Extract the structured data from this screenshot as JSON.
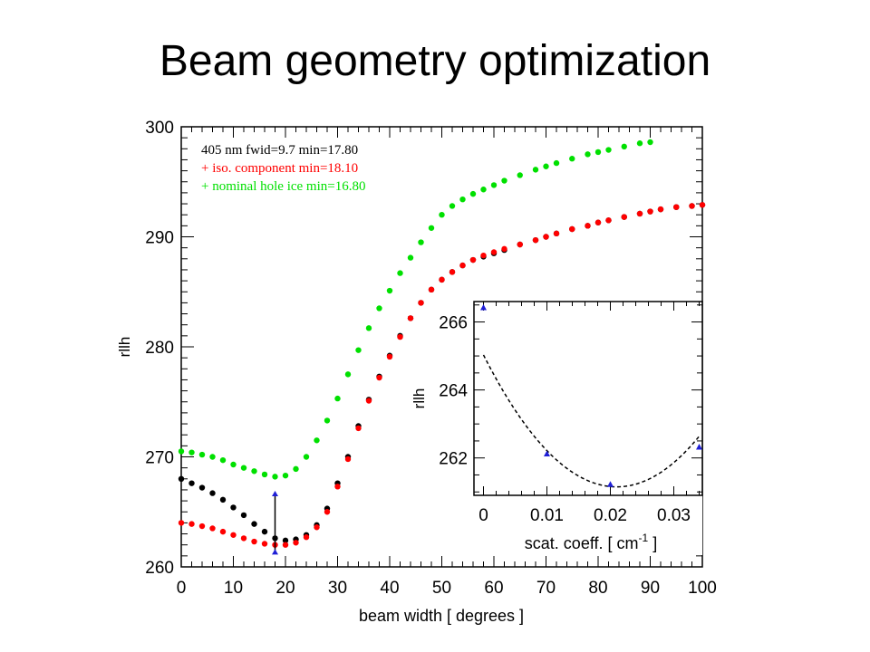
{
  "slide": {
    "title": "Beam geometry optimization"
  },
  "colors": {
    "black": "#000000",
    "red": "#ff0000",
    "green": "#00e000",
    "blue": "#1f1fd6"
  },
  "chart_data": [
    {
      "type": "scatter",
      "title": "",
      "xlabel": "beam width [ degrees ]",
      "ylabel": "rllh",
      "xlim": [
        0,
        100
      ],
      "ylim": [
        260,
        300
      ],
      "xticks": [
        0,
        10,
        20,
        30,
        40,
        50,
        60,
        70,
        80,
        90,
        100
      ],
      "yticks": [
        260,
        270,
        280,
        290,
        300
      ],
      "legend_placement": "top-left",
      "legend": [
        {
          "text": "405 nm fwid=9.7   min=17.80",
          "color": "#000000"
        },
        {
          "text": "+ iso. component  min=18.10",
          "color": "#ff0000"
        },
        {
          "text": "+ nominal hole ice  min=16.80",
          "color": "#00e000"
        }
      ],
      "series": [
        {
          "color": "#000000",
          "x": [
            0,
            2,
            4,
            6,
            8,
            10,
            12,
            14,
            16,
            18,
            20,
            22,
            24,
            26,
            28,
            30,
            32,
            34,
            36,
            38,
            40,
            42,
            44,
            46,
            48,
            50,
            52,
            54,
            56,
            58,
            60,
            62,
            65,
            68,
            70,
            72,
            75,
            78,
            80,
            82,
            85,
            88,
            90,
            92,
            95,
            98,
            100
          ],
          "y": [
            268.0,
            267.6,
            267.2,
            266.7,
            266.1,
            265.4,
            264.7,
            263.9,
            263.2,
            262.6,
            262.4,
            262.5,
            262.9,
            263.8,
            265.3,
            267.6,
            270.0,
            272.8,
            275.2,
            277.3,
            279.2,
            281.0,
            282.6,
            284.0,
            285.2,
            286.1,
            286.8,
            287.4,
            287.9,
            288.2,
            288.5,
            288.8,
            289.3,
            289.7,
            290.0,
            290.3,
            290.7,
            291.0,
            291.3,
            291.5,
            291.8,
            292.1,
            292.3,
            292.5,
            292.7,
            292.8,
            292.9
          ]
        },
        {
          "color": "#ff0000",
          "x": [
            0,
            2,
            4,
            6,
            8,
            10,
            12,
            14,
            16,
            18,
            20,
            22,
            24,
            26,
            28,
            30,
            32,
            34,
            36,
            38,
            40,
            42,
            44,
            46,
            48,
            50,
            52,
            54,
            56,
            58,
            60,
            62,
            65,
            68,
            70,
            72,
            75,
            78,
            80,
            82,
            85,
            88,
            90,
            92,
            95,
            98,
            100
          ],
          "y": [
            264.0,
            263.9,
            263.7,
            263.5,
            263.2,
            262.9,
            262.6,
            262.3,
            262.1,
            262.0,
            262.0,
            262.2,
            262.7,
            263.6,
            265.0,
            267.3,
            269.8,
            272.6,
            275.1,
            277.2,
            279.1,
            280.9,
            282.6,
            284.0,
            285.2,
            286.1,
            286.8,
            287.4,
            287.9,
            288.3,
            288.6,
            288.9,
            289.3,
            289.7,
            290.0,
            290.3,
            290.7,
            291.0,
            291.3,
            291.5,
            291.8,
            292.1,
            292.3,
            292.5,
            292.7,
            292.8,
            292.9
          ]
        },
        {
          "color": "#00e000",
          "x": [
            0,
            2,
            4,
            6,
            8,
            10,
            12,
            14,
            16,
            18,
            20,
            22,
            24,
            26,
            28,
            30,
            32,
            34,
            36,
            38,
            40,
            42,
            44,
            46,
            48,
            50,
            52,
            54,
            56,
            58,
            60,
            62,
            65,
            68,
            70,
            72,
            75,
            78,
            80,
            82,
            85,
            88,
            90
          ],
          "y": [
            270.5,
            270.4,
            270.2,
            270.0,
            269.7,
            269.3,
            269.0,
            268.7,
            268.4,
            268.2,
            268.3,
            268.9,
            270.0,
            271.5,
            273.3,
            275.3,
            277.5,
            279.7,
            281.7,
            283.5,
            285.1,
            286.7,
            288.1,
            289.5,
            290.8,
            292.0,
            292.8,
            293.4,
            293.9,
            294.3,
            294.7,
            295.1,
            295.6,
            296.1,
            296.4,
            296.7,
            297.1,
            297.5,
            297.7,
            297.9,
            298.2,
            298.5,
            298.6
          ]
        }
      ],
      "annotation": {
        "x": 18,
        "y_top": 266.5,
        "y_bottom": 261.2,
        "color": "#1f1fd6"
      }
    },
    {
      "type": "line",
      "title": "",
      "xlabel": "scat. coeff. [ cm-1 ]",
      "xlabel_parts": {
        "text": "scat. coeff. [ cm",
        "sup": "-1",
        "end": " ]"
      },
      "ylabel": "rllh",
      "xlim": [
        -0.0015,
        0.0345
      ],
      "ylim": [
        260.9,
        266.6
      ],
      "xticks": [
        0,
        0.01,
        0.02,
        0.03
      ],
      "xtick_labels": [
        "0",
        "0.01",
        "0.02",
        "0.03"
      ],
      "yticks": [
        262,
        264,
        266
      ],
      "points": {
        "x": [
          0,
          0.01,
          0.02,
          0.034
        ],
        "y": [
          266.4,
          262.1,
          261.2,
          262.3
        ],
        "color": "#1f1fd6",
        "marker": "triangle"
      },
      "fit": {
        "style": "dashed",
        "color": "#000000",
        "vertex_x": 0.021,
        "vertex_y": 261.15,
        "curvature": 8800
      }
    }
  ]
}
